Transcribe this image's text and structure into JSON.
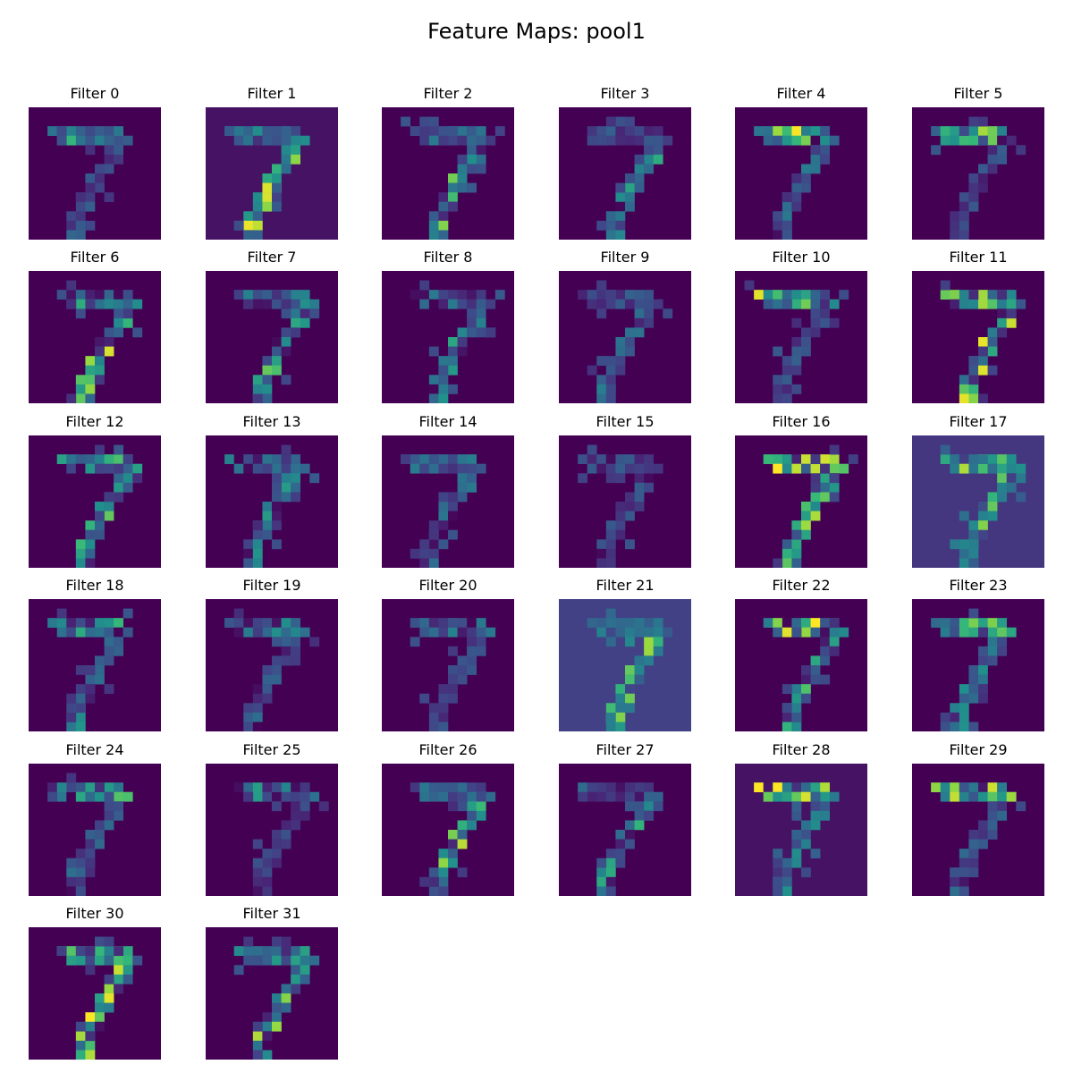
{
  "chart_data": {
    "type": "heatmap",
    "title": "Feature Maps: pool1",
    "layer": "pool1",
    "colormap": "viridis",
    "grid": false,
    "map_shape": [
      14,
      14
    ],
    "panel_titles": [
      "Filter 0",
      "Filter 1",
      "Filter 2",
      "Filter 3",
      "Filter 4",
      "Filter 5",
      "Filter 6",
      "Filter 7",
      "Filter 8",
      "Filter 9",
      "Filter 10",
      "Filter 11",
      "Filter 12",
      "Filter 13",
      "Filter 14",
      "Filter 15",
      "Filter 16",
      "Filter 17",
      "Filter 18",
      "Filter 19",
      "Filter 20",
      "Filter 21",
      "Filter 22",
      "Filter 23",
      "Filter 24",
      "Filter 25",
      "Filter 26",
      "Filter 27",
      "Filter 28",
      "Filter 29",
      "Filter 30",
      "Filter 31"
    ],
    "background_levels": [
      0,
      0.06,
      0,
      0,
      0,
      0,
      0,
      0,
      0,
      0,
      0,
      0,
      0,
      0,
      0,
      0,
      0,
      0.2,
      0,
      0,
      0,
      0.24,
      0,
      0,
      0,
      0,
      0,
      0,
      0.06,
      0,
      0,
      0
    ]
  }
}
